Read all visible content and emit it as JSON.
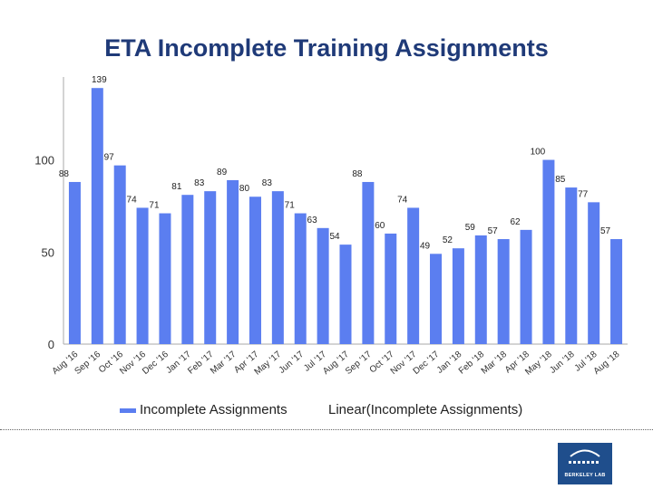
{
  "title": "ETA Incomplete Training Assignments",
  "chart_data": {
    "type": "bar",
    "title": "ETA Incomplete Training Assignments",
    "categories": [
      "Aug '16",
      "Sep '16",
      "Oct '16",
      "Nov '16",
      "Dec '16",
      "Jan '17",
      "Feb '17",
      "Mar '17",
      "Apr '17",
      "May '17",
      "Jun '17",
      "Jul '17",
      "Aug '17",
      "Sep '17",
      "Oct '17",
      "Nov '17",
      "Dec '17",
      "Jan '18",
      "Feb '18",
      "Mar '18",
      "Apr '18",
      "May '18",
      "Jun '18",
      "Jul '18",
      "Aug '18"
    ],
    "series": [
      {
        "name": "Incomplete Assignments",
        "values": [
          88,
          139,
          97,
          74,
          71,
          81,
          83,
          89,
          80,
          83,
          71,
          63,
          54,
          88,
          60,
          74,
          49,
          52,
          59,
          57,
          62,
          100,
          85,
          77,
          57
        ]
      }
    ],
    "yticks": [
      0,
      50,
      100
    ],
    "ylim": [
      0,
      145
    ],
    "grid": false,
    "legend": {
      "position": "bottom"
    },
    "legend_entries": [
      "Incomplete Assignments",
      "Linear(Incomplete Assignments)"
    ],
    "bar_color": "#5b7ef0",
    "axis_color": "#aaaaaa"
  },
  "logo": {
    "text": "BERKELEY LAB",
    "color": "#1f4e8c"
  }
}
